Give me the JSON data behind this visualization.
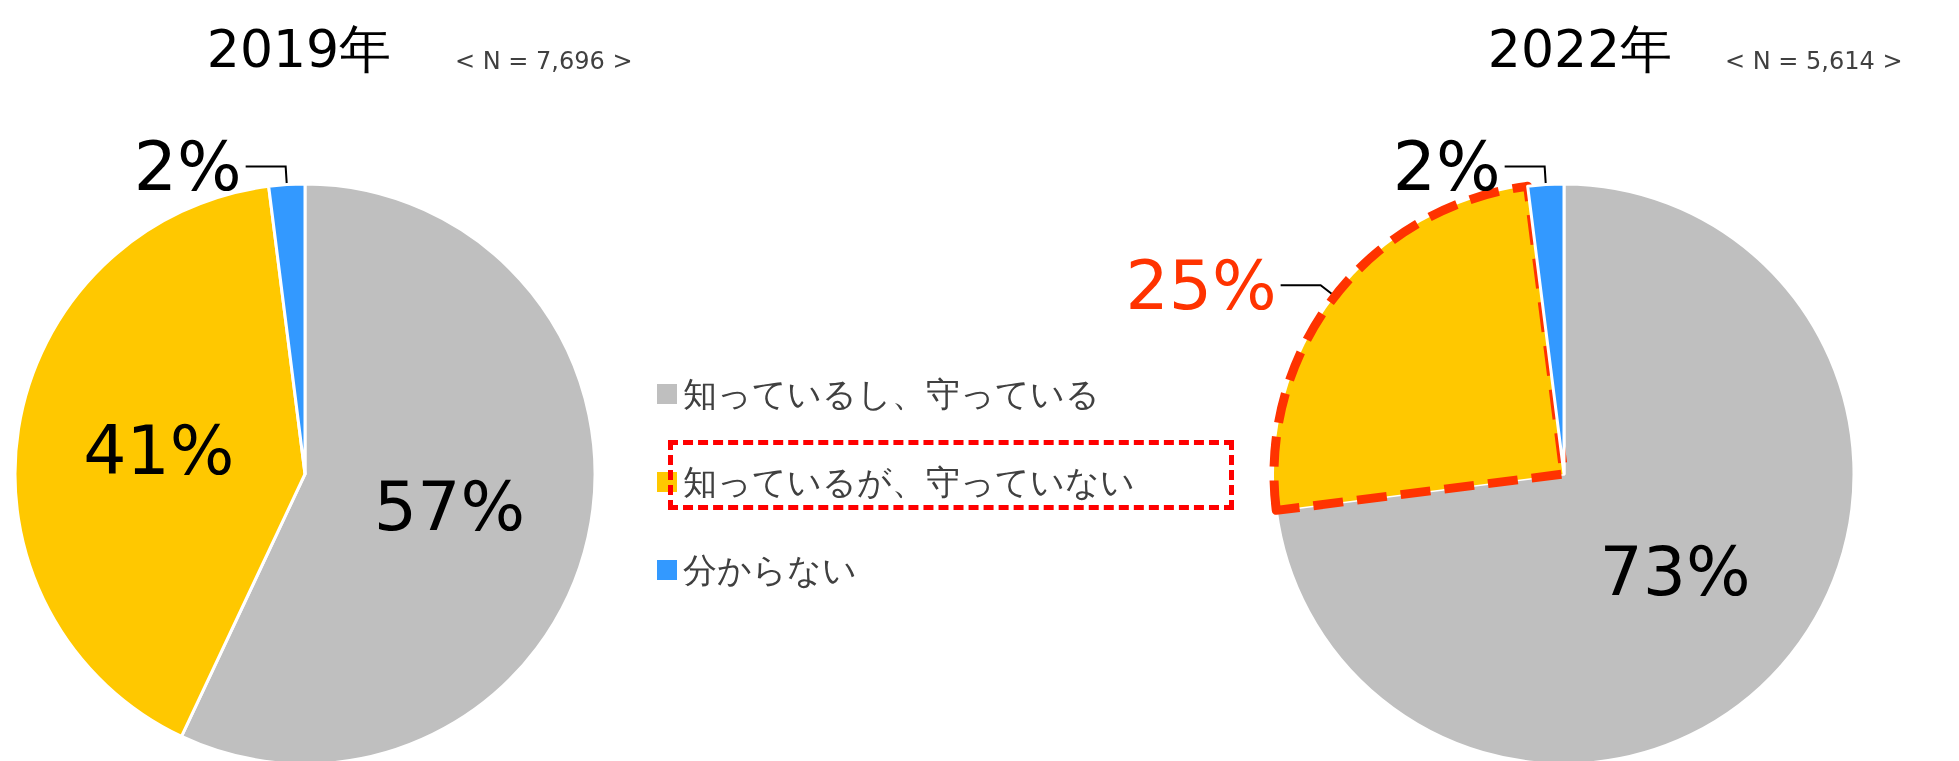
{
  "chart_data": {
    "type": "pie",
    "categories": [
      "知っているし、守っている",
      "知っているが、守っていない",
      "分からない"
    ],
    "colors": [
      "#bfbfbf",
      "#ffc800",
      "#3399ff"
    ],
    "legend": "right",
    "series": [
      {
        "name": "2019年",
        "values": [
          57,
          41,
          2
        ],
        "value_labels": [
          "57%",
          "41%",
          "2%"
        ]
      },
      {
        "name": "2022年",
        "values": [
          73,
          25,
          2
        ],
        "value_labels": [
          "73%",
          "25%",
          "2%"
        ]
      }
    ],
    "annotations": [
      "< N = 7,696 >",
      "< N = 5,614 >"
    ]
  }
}
